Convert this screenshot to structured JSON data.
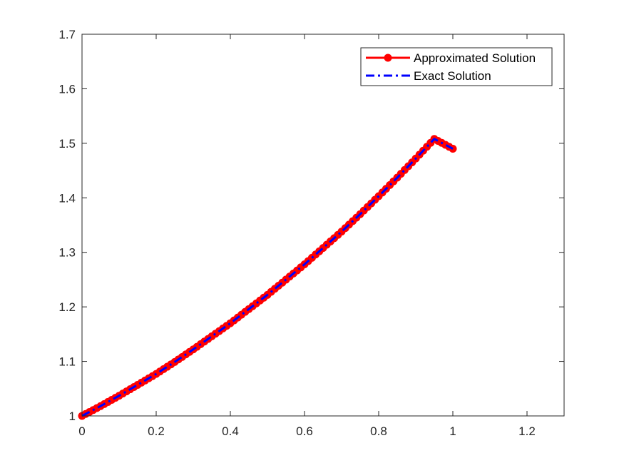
{
  "chart_data": {
    "type": "line",
    "title": "",
    "xlabel": "",
    "ylabel": "",
    "xlim": [
      0,
      1.3
    ],
    "ylim": [
      1,
      1.7
    ],
    "xticks": [
      0,
      0.2,
      0.4,
      0.6,
      0.8,
      1,
      1.2
    ],
    "xtick_labels": [
      "0",
      "0.2",
      "0.4",
      "0.6",
      "0.8",
      "1",
      "1.2"
    ],
    "yticks": [
      1,
      1.1,
      1.2,
      1.3,
      1.4,
      1.5,
      1.6,
      1.7
    ],
    "ytick_labels": [
      "1",
      "1.1",
      "1.2",
      "1.3",
      "1.4",
      "1.5",
      "1.6",
      "1.7"
    ],
    "grid": false,
    "legend_position": "top-right",
    "x": [
      0,
      0.05,
      0.1,
      0.15,
      0.2,
      0.25,
      0.3,
      0.35,
      0.4,
      0.45,
      0.5,
      0.55,
      0.6,
      0.65,
      0.7,
      0.75,
      0.8,
      0.85,
      0.9,
      0.95,
      1
    ],
    "series": [
      {
        "name": "Approximated Solution",
        "color": "#ff0000",
        "style": "solid-with-circle-markers",
        "values": [
          1.0,
          1.018,
          1.037,
          1.057,
          1.077,
          1.099,
          1.122,
          1.146,
          1.17,
          1.196,
          1.222,
          1.25,
          1.278,
          1.308,
          1.338,
          1.37,
          1.403,
          1.437,
          1.472,
          1.508,
          1.49
        ]
      },
      {
        "name": "Exact Solution",
        "color": "#0000ff",
        "style": "dash-dot",
        "values": [
          1.0,
          1.018,
          1.037,
          1.057,
          1.077,
          1.099,
          1.122,
          1.146,
          1.17,
          1.196,
          1.222,
          1.25,
          1.278,
          1.308,
          1.338,
          1.37,
          1.403,
          1.437,
          1.472,
          1.508,
          1.49
        ]
      }
    ]
  }
}
